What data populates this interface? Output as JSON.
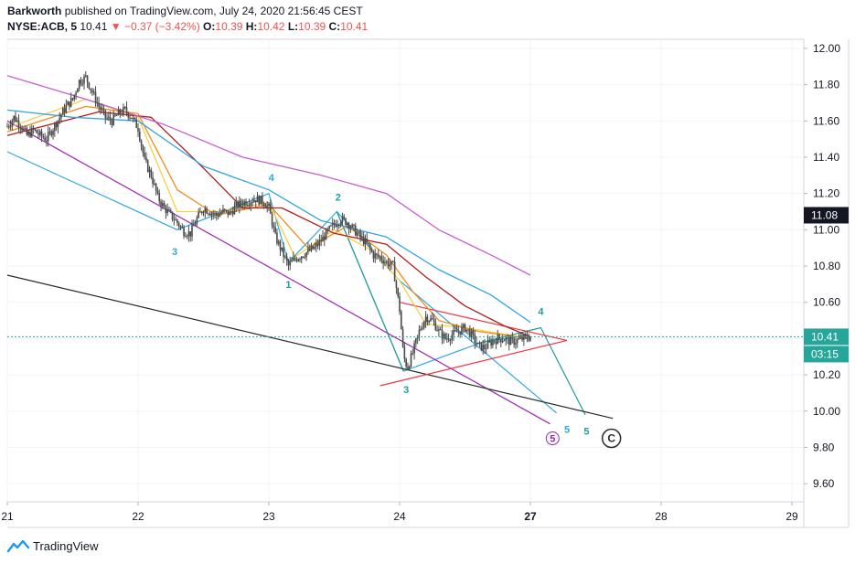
{
  "header": {
    "author": "Barkworth",
    "published_text": "published on TradingView.com, July 24, 2020 21:56:45 CEST",
    "symbol": "NYSE:ACB, 5",
    "last": "10.41",
    "change_arrow": "▼",
    "change": "−0.37 (−3.42%)",
    "o_label": "O:",
    "o_value": "10.39",
    "h_label": "H:",
    "h_value": "10.42",
    "l_label": "L:",
    "l_value": "10.39",
    "c_label": "C:",
    "c_value": "10.41"
  },
  "footer": {
    "brand": "TradingView"
  },
  "colors": {
    "up": "#26a69a",
    "down": "#ef5350",
    "candle": "#4a4a4a",
    "price_badge": "#26a69a",
    "crosshair_badge": "#131722",
    "ma_yellow": "#f7d046",
    "ma_orange": "#f08c1e",
    "ma_darkred": "#b71c1c",
    "ma_blue": "#2fa7e0",
    "ma_purple": "#c55fd1",
    "wave_teal": "#1e9e9a",
    "wave_purple": "#9c27b0",
    "line_dark": "#2b2b2b",
    "line_red": "#f23645",
    "channel_blue": "#2fa7e0"
  },
  "chart_data": {
    "type": "candlestick",
    "title": "",
    "y_axis": {
      "ticks": [
        "12.00",
        "11.80",
        "11.60",
        "11.40",
        "11.20",
        "11.00",
        "10.80",
        "10.60",
        "10.40",
        "10.20",
        "10.00",
        "9.80",
        "9.60"
      ],
      "ylim": [
        9.5,
        12.05
      ]
    },
    "x_axis": {
      "ticks": [
        "21",
        "22",
        "23",
        "24",
        "27",
        "28",
        "29"
      ],
      "tick_positions_days": [
        0,
        1,
        2,
        3,
        4,
        5,
        6
      ]
    },
    "last_price": 10.41,
    "last_price_label": "10.41",
    "countdown_label": "03:15",
    "crosshair_price_label": "11.08",
    "crosshair_price": 11.08,
    "price_path": [
      [
        0.0,
        11.57
      ],
      [
        0.05,
        11.62
      ],
      [
        0.1,
        11.58
      ],
      [
        0.15,
        11.52
      ],
      [
        0.2,
        11.55
      ],
      [
        0.25,
        11.52
      ],
      [
        0.3,
        11.5
      ],
      [
        0.35,
        11.56
      ],
      [
        0.4,
        11.62
      ],
      [
        0.45,
        11.68
      ],
      [
        0.5,
        11.72
      ],
      [
        0.55,
        11.82
      ],
      [
        0.6,
        11.84
      ],
      [
        0.65,
        11.76
      ],
      [
        0.7,
        11.68
      ],
      [
        0.75,
        11.62
      ],
      [
        0.8,
        11.6
      ],
      [
        0.85,
        11.64
      ],
      [
        0.9,
        11.66
      ],
      [
        0.95,
        11.62
      ],
      [
        1.0,
        11.56
      ],
      [
        1.05,
        11.38
      ],
      [
        1.1,
        11.3
      ],
      [
        1.15,
        11.18
      ],
      [
        1.2,
        11.12
      ],
      [
        1.25,
        11.08
      ],
      [
        1.3,
        11.04
      ],
      [
        1.35,
        10.99
      ],
      [
        1.4,
        10.98
      ],
      [
        1.45,
        11.06
      ],
      [
        1.5,
        11.12
      ],
      [
        1.55,
        11.1
      ],
      [
        1.6,
        11.08
      ],
      [
        1.65,
        11.1
      ],
      [
        1.7,
        11.09
      ],
      [
        1.75,
        11.13
      ],
      [
        1.8,
        11.15
      ],
      [
        1.85,
        11.16
      ],
      [
        1.9,
        11.17
      ],
      [
        1.95,
        11.16
      ],
      [
        2.0,
        11.12
      ],
      [
        2.05,
        10.96
      ],
      [
        2.1,
        10.88
      ],
      [
        2.15,
        10.8
      ],
      [
        2.2,
        10.84
      ],
      [
        2.25,
        10.86
      ],
      [
        2.3,
        10.88
      ],
      [
        2.35,
        10.9
      ],
      [
        2.4,
        10.94
      ],
      [
        2.45,
        10.99
      ],
      [
        2.5,
        11.03
      ],
      [
        2.55,
        11.06
      ],
      [
        2.6,
        11.04
      ],
      [
        2.65,
        11.0
      ],
      [
        2.7,
        10.96
      ],
      [
        2.75,
        10.92
      ],
      [
        2.8,
        10.86
      ],
      [
        2.85,
        10.85
      ],
      [
        2.9,
        10.82
      ],
      [
        2.95,
        10.8
      ],
      [
        3.0,
        10.56
      ],
      [
        3.03,
        10.3
      ],
      [
        3.06,
        10.24
      ],
      [
        3.1,
        10.32
      ],
      [
        3.15,
        10.44
      ],
      [
        3.2,
        10.52
      ],
      [
        3.25,
        10.5
      ],
      [
        3.3,
        10.44
      ],
      [
        3.35,
        10.4
      ],
      [
        3.4,
        10.42
      ],
      [
        3.45,
        10.44
      ],
      [
        3.5,
        10.46
      ],
      [
        3.55,
        10.42
      ],
      [
        3.6,
        10.36
      ],
      [
        3.65,
        10.35
      ],
      [
        3.7,
        10.38
      ],
      [
        3.75,
        10.4
      ],
      [
        3.8,
        10.4
      ],
      [
        3.85,
        10.38
      ],
      [
        3.9,
        10.39
      ],
      [
        3.95,
        10.4
      ],
      [
        4.0,
        10.41
      ]
    ],
    "moving_averages": [
      {
        "color": "ma_yellow",
        "points": [
          [
            0.0,
            11.56
          ],
          [
            0.6,
            11.72
          ],
          [
            1.0,
            11.62
          ],
          [
            1.3,
            11.1
          ],
          [
            1.6,
            11.1
          ],
          [
            2.0,
            11.15
          ],
          [
            2.2,
            10.85
          ],
          [
            2.5,
            11.0
          ],
          [
            2.8,
            10.88
          ],
          [
            3.0,
            10.72
          ],
          [
            3.2,
            10.48
          ],
          [
            3.5,
            10.46
          ],
          [
            4.0,
            10.4
          ]
        ]
      },
      {
        "color": "ma_orange",
        "points": [
          [
            0.0,
            11.54
          ],
          [
            0.6,
            11.68
          ],
          [
            1.0,
            11.64
          ],
          [
            1.3,
            11.22
          ],
          [
            1.6,
            11.08
          ],
          [
            2.0,
            11.14
          ],
          [
            2.3,
            10.9
          ],
          [
            2.6,
            11.02
          ],
          [
            2.9,
            10.86
          ],
          [
            3.1,
            10.66
          ],
          [
            3.3,
            10.5
          ],
          [
            3.6,
            10.44
          ],
          [
            4.0,
            10.4
          ]
        ]
      },
      {
        "color": "ma_darkred",
        "points": [
          [
            0.0,
            11.52
          ],
          [
            0.7,
            11.65
          ],
          [
            1.1,
            11.62
          ],
          [
            1.5,
            11.34
          ],
          [
            1.8,
            11.12
          ],
          [
            2.1,
            11.12
          ],
          [
            2.5,
            10.98
          ],
          [
            2.9,
            10.92
          ],
          [
            3.2,
            10.74
          ],
          [
            3.5,
            10.58
          ],
          [
            3.8,
            10.47
          ],
          [
            4.0,
            10.41
          ]
        ]
      },
      {
        "color": "ma_blue",
        "points": [
          [
            0.0,
            11.66
          ],
          [
            0.5,
            11.62
          ],
          [
            1.0,
            11.6
          ],
          [
            1.5,
            11.35
          ],
          [
            2.0,
            11.22
          ],
          [
            2.4,
            11.05
          ],
          [
            2.9,
            10.96
          ],
          [
            3.3,
            10.78
          ],
          [
            3.7,
            10.64
          ],
          [
            4.0,
            10.49
          ]
        ]
      },
      {
        "color": "ma_purple",
        "points": [
          [
            0.0,
            11.85
          ],
          [
            0.6,
            11.72
          ],
          [
            1.2,
            11.58
          ],
          [
            1.8,
            11.4
          ],
          [
            2.4,
            11.3
          ],
          [
            2.9,
            11.2
          ],
          [
            3.3,
            11.0
          ],
          [
            3.7,
            10.86
          ],
          [
            4.0,
            10.75
          ]
        ]
      }
    ],
    "drawings": [
      {
        "color": "channel_blue",
        "points": [
          [
            0.0,
            11.43
          ],
          [
            1.3,
            11.0
          ]
        ]
      },
      {
        "color": "channel_blue",
        "points": [
          [
            1.3,
            11.0
          ],
          [
            2.0,
            11.2
          ],
          [
            2.15,
            10.82
          ],
          [
            2.52,
            11.1
          ],
          [
            3.03,
            10.22
          ],
          [
            3.63,
            10.38
          ],
          [
            3.98,
            10.42
          ]
        ]
      },
      {
        "color": "wave_teal",
        "points": [
          [
            3.63,
            10.38
          ],
          [
            4.08,
            10.46
          ],
          [
            4.42,
            9.98
          ]
        ]
      },
      {
        "color": "channel_blue",
        "points": [
          [
            2.52,
            11.1
          ],
          [
            3.0,
            10.72
          ],
          [
            4.2,
            9.99
          ]
        ]
      },
      {
        "color": "wave_teal",
        "points": [
          [
            2.52,
            11.1
          ],
          [
            3.03,
            10.22
          ]
        ]
      },
      {
        "color": "wave_purple",
        "points": [
          [
            0.0,
            11.6
          ],
          [
            4.15,
            9.93
          ]
        ]
      },
      {
        "color": "line_dark",
        "points": [
          [
            0.0,
            10.75
          ],
          [
            4.63,
            9.96
          ]
        ]
      },
      {
        "color": "line_red",
        "points": [
          [
            3.0,
            10.6
          ],
          [
            4.28,
            10.39
          ]
        ]
      },
      {
        "color": "line_red",
        "points": [
          [
            2.85,
            10.14
          ],
          [
            4.28,
            10.39
          ]
        ]
      }
    ],
    "wave_labels": [
      {
        "text": "3",
        "x": 1.28,
        "y": 10.86,
        "color": "channel_blue"
      },
      {
        "text": "4",
        "x": 2.02,
        "y": 11.27,
        "color": "channel_blue"
      },
      {
        "text": "1",
        "x": 2.15,
        "y": 10.68,
        "color": "wave_teal"
      },
      {
        "text": "2",
        "x": 2.53,
        "y": 11.16,
        "color": "wave_teal"
      },
      {
        "text": "3",
        "x": 3.05,
        "y": 10.1,
        "color": "wave_teal"
      },
      {
        "text": "4",
        "x": 4.08,
        "y": 10.53,
        "color": "wave_teal"
      },
      {
        "text": "5",
        "x": 4.28,
        "y": 9.88,
        "color": "channel_blue"
      },
      {
        "text": "5",
        "x": 4.43,
        "y": 9.87,
        "color": "wave_teal"
      },
      {
        "text": "5",
        "x": 4.17,
        "y": 9.83,
        "color": "wave_purple",
        "circled": true
      },
      {
        "text": "C",
        "x": 4.62,
        "y": 9.83,
        "color": "line_dark",
        "circled": true
      }
    ]
  }
}
